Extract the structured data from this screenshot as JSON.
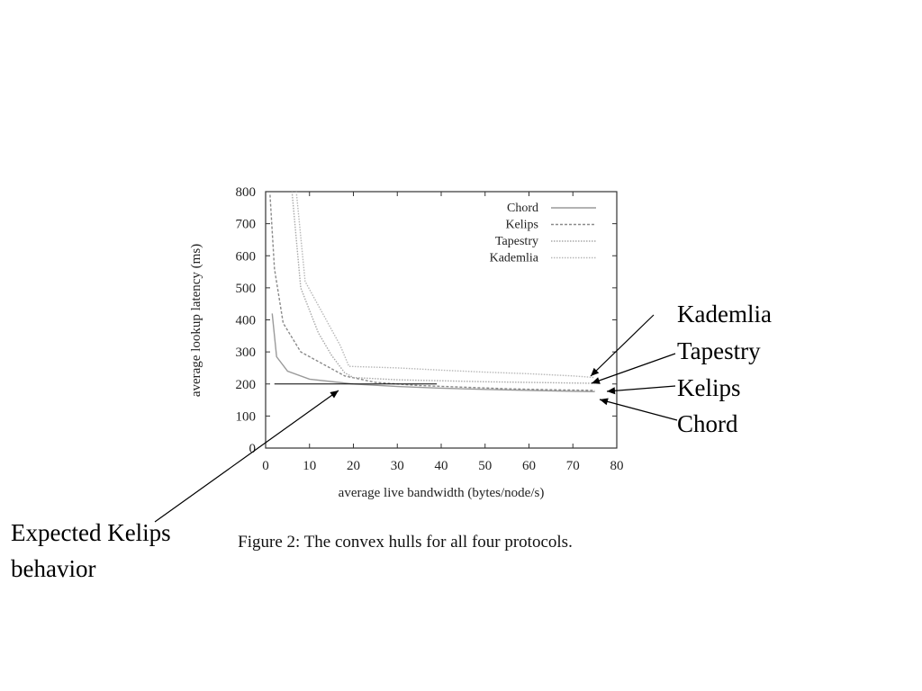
{
  "caption": "Figure 2: The convex hulls for all four protocols.",
  "annotations": {
    "right": [
      "Kademlia",
      "Tapestry",
      "Kelips",
      "Chord"
    ],
    "left": "Expected Kelips behavior"
  },
  "chart_data": {
    "type": "line",
    "title": "",
    "xlabel": "average live bandwidth (bytes/node/s)",
    "ylabel": "average lookup latency (ms)",
    "xlim": [
      0,
      80
    ],
    "ylim": [
      0,
      800
    ],
    "xticks": [
      0,
      10,
      20,
      30,
      40,
      50,
      60,
      70,
      80
    ],
    "yticks": [
      0,
      100,
      200,
      300,
      400,
      500,
      600,
      700,
      800
    ],
    "legend_position": "top-right",
    "series": [
      {
        "name": "Chord",
        "style": "solid",
        "color": "#9a9a9a",
        "points": [
          [
            1.5,
            420
          ],
          [
            2.5,
            285
          ],
          [
            5,
            240
          ],
          [
            10,
            215
          ],
          [
            20,
            200
          ],
          [
            30,
            192
          ],
          [
            40,
            187
          ],
          [
            50,
            183
          ],
          [
            60,
            180
          ],
          [
            70,
            177
          ],
          [
            75,
            176
          ]
        ]
      },
      {
        "name": "Kelips",
        "style": "dashed",
        "color": "#8a8a8a",
        "points": [
          [
            1,
            790
          ],
          [
            2,
            560
          ],
          [
            4,
            390
          ],
          [
            8,
            300
          ],
          [
            12,
            270
          ],
          [
            18,
            225
          ],
          [
            25,
            205
          ],
          [
            35,
            195
          ],
          [
            45,
            190
          ],
          [
            55,
            185
          ],
          [
            65,
            182
          ],
          [
            75,
            180
          ]
        ]
      },
      {
        "name": "Tapestry",
        "style": "dotted",
        "color": "#a8a8a8",
        "points": [
          [
            6,
            800
          ],
          [
            8,
            500
          ],
          [
            12,
            360
          ],
          [
            15,
            290
          ],
          [
            18,
            235
          ],
          [
            20,
            220
          ],
          [
            30,
            213
          ],
          [
            40,
            210
          ],
          [
            50,
            207
          ],
          [
            60,
            205
          ],
          [
            70,
            203
          ],
          [
            75,
            202
          ]
        ]
      },
      {
        "name": "Kademlia",
        "style": "dotted",
        "color": "#b8b8b8",
        "points": [
          [
            7,
            800
          ],
          [
            9,
            520
          ],
          [
            13,
            420
          ],
          [
            17,
            320
          ],
          [
            19,
            255
          ],
          [
            30,
            250
          ],
          [
            40,
            243
          ],
          [
            50,
            237
          ],
          [
            60,
            232
          ],
          [
            70,
            225
          ],
          [
            75,
            220
          ]
        ]
      }
    ],
    "reference_line": {
      "y": 200,
      "x": [
        2,
        39
      ]
    }
  }
}
